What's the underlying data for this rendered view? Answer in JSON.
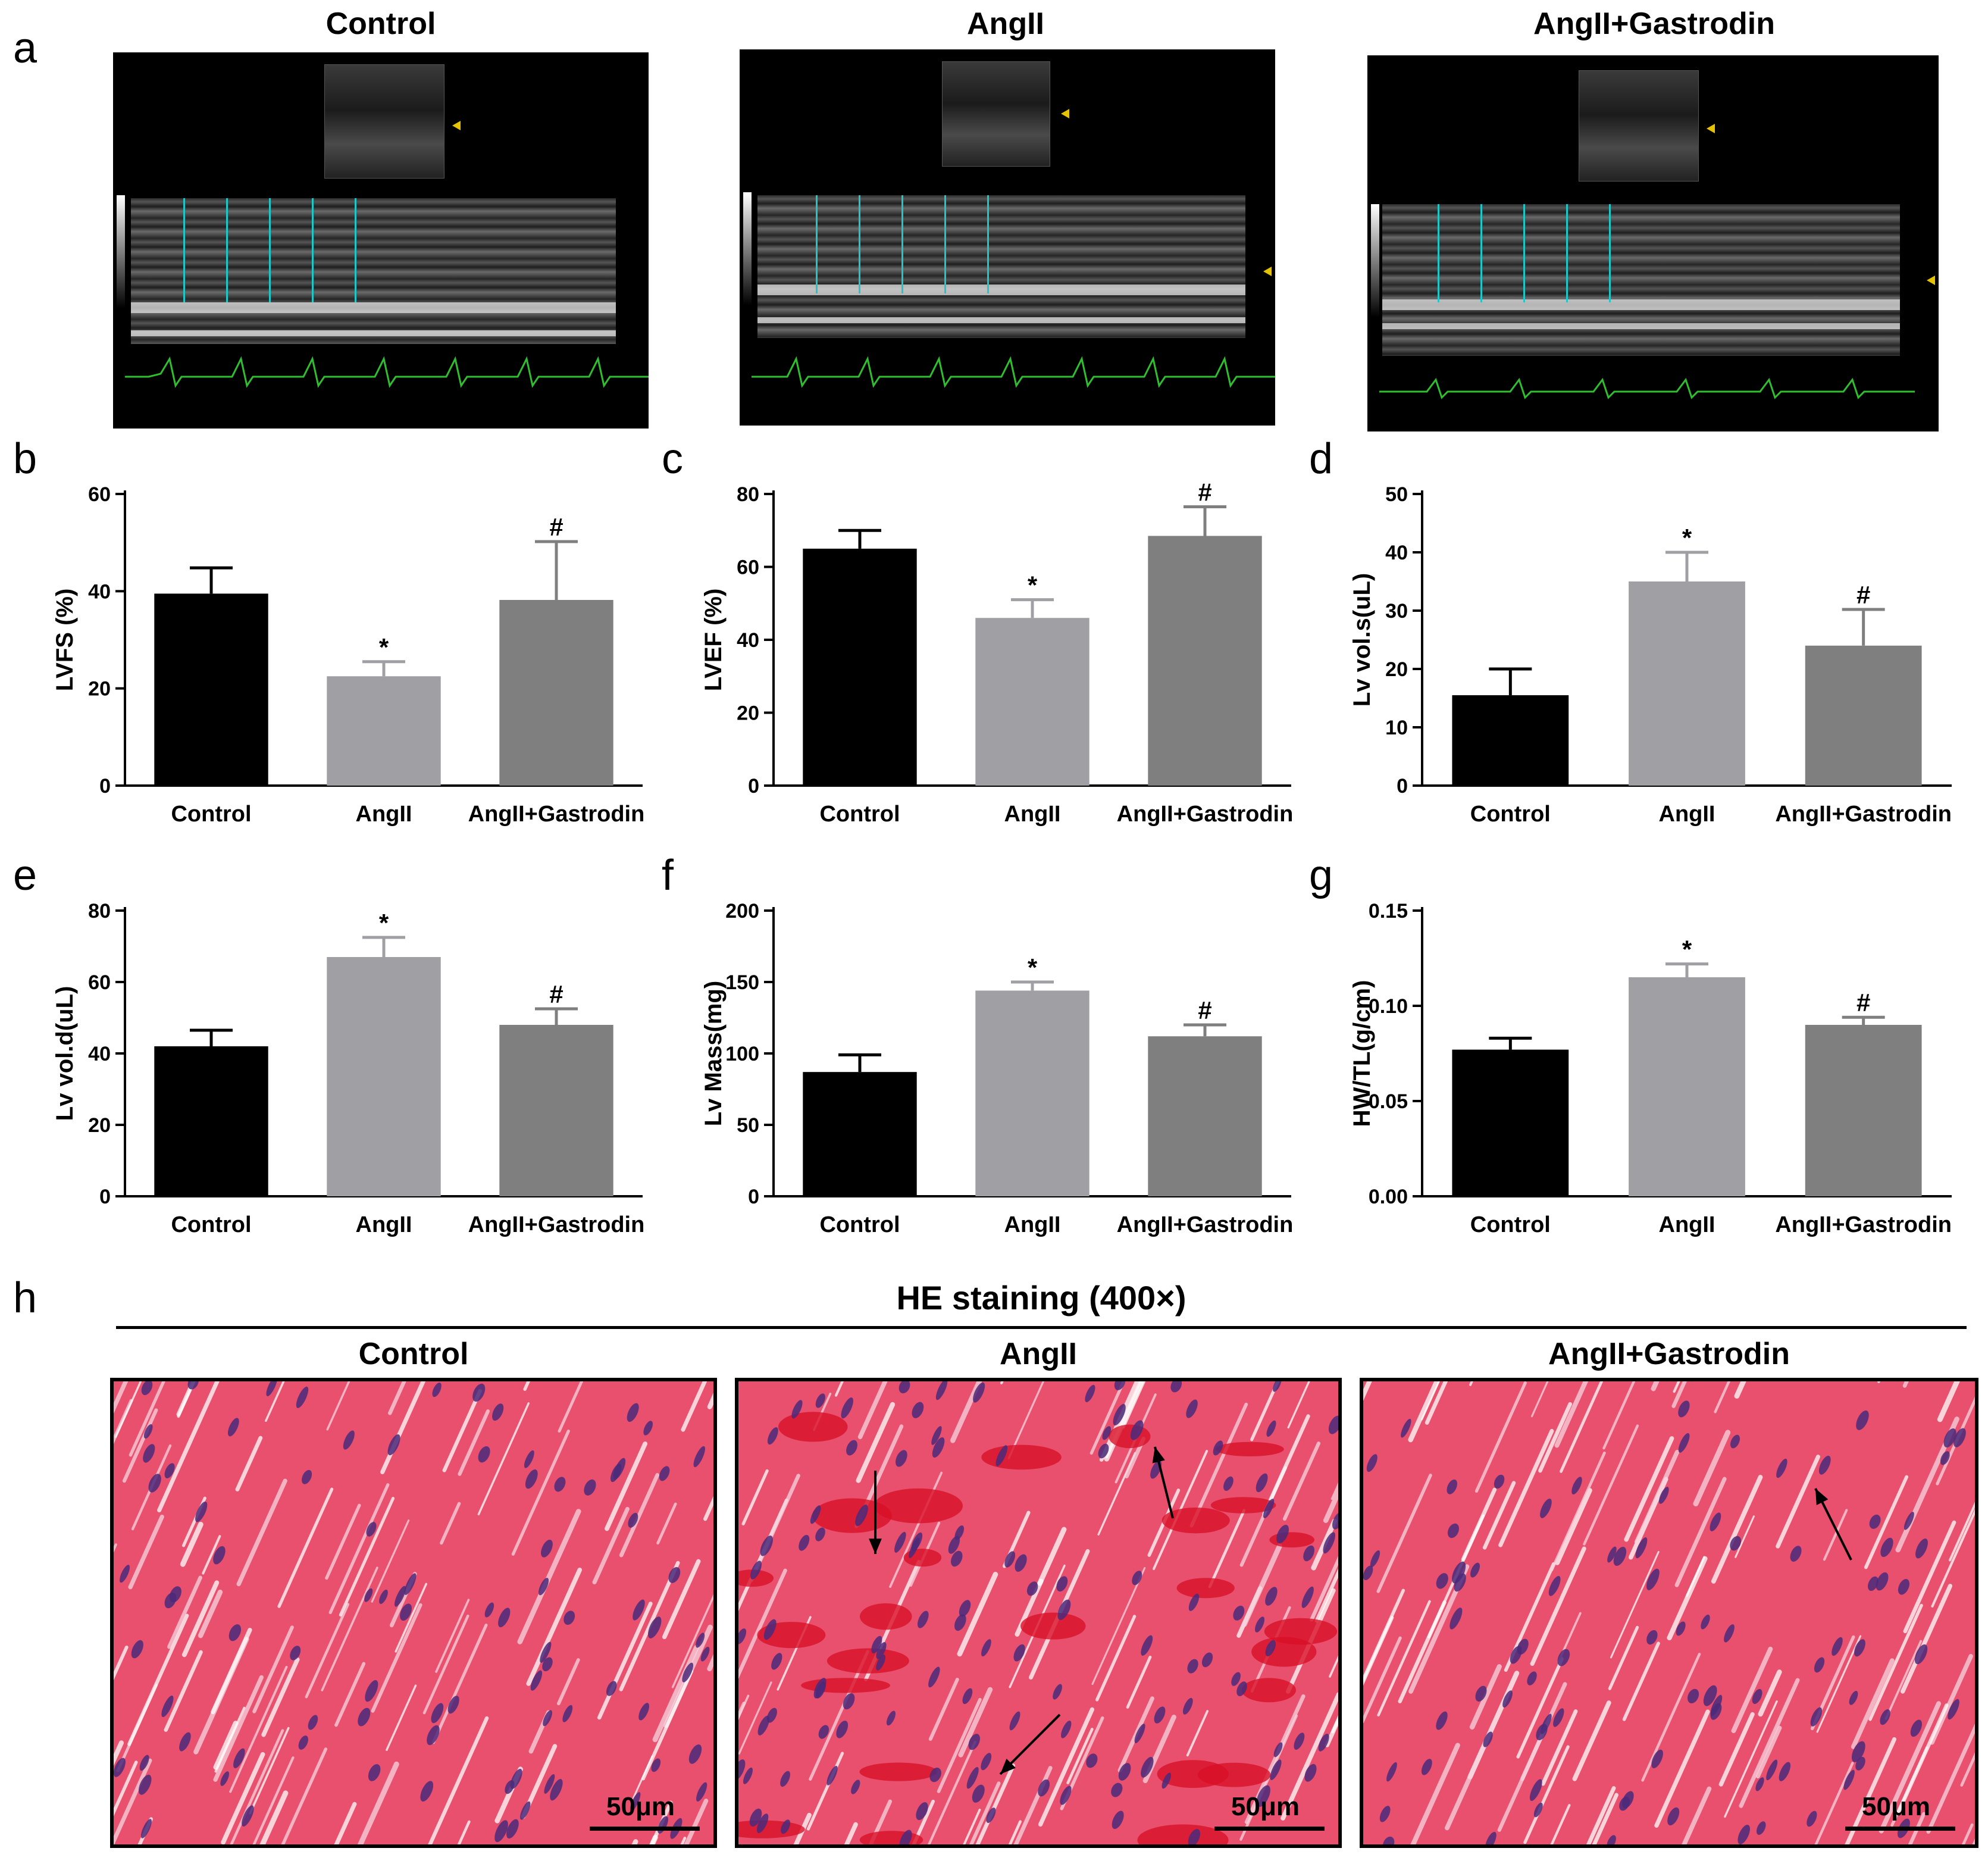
{
  "panel_labels": {
    "a": "a",
    "b": "b",
    "c": "c",
    "d": "d",
    "e": "e",
    "f": "f",
    "g": "g",
    "h": "h"
  },
  "echo": {
    "titles": [
      "Control",
      "AngII",
      "AngII+Gastrodin"
    ]
  },
  "histology": {
    "heading": "HE staining (400×)",
    "titles": [
      "Control",
      "AngII",
      "AngII+Gastrodin"
    ],
    "scale_label": "50μm",
    "colors": {
      "tissue": "#e8506e",
      "nuclei": "#4a2a7a",
      "highlight": "#d81028"
    }
  },
  "colors": {
    "control": "#000000",
    "angii": "#a0a0a4",
    "gastrodin": "#7f7f7f"
  },
  "chart_data": [
    {
      "type": "bar",
      "panel": "b",
      "categories": [
        "Control",
        "AngII",
        "AngII+Gastrodin"
      ],
      "values": [
        39.5,
        22.5,
        38.2
      ],
      "errors": [
        5.3,
        3.0,
        12.0
      ],
      "sig": [
        "",
        "*",
        "#"
      ],
      "ylabel": "LVFS (%)",
      "ylim": [
        0,
        60
      ],
      "yticks": [
        "0",
        "20",
        "40",
        "60"
      ],
      "tickvals": [
        0,
        20,
        40,
        60
      ]
    },
    {
      "type": "bar",
      "panel": "c",
      "categories": [
        "Control",
        "AngII",
        "AngII+Gastrodin"
      ],
      "values": [
        65,
        46,
        68.5
      ],
      "errors": [
        5,
        5,
        8
      ],
      "sig": [
        "",
        "*",
        "#"
      ],
      "ylabel": "LVEF (%)",
      "ylim": [
        0,
        80
      ],
      "yticks": [
        "0",
        "20",
        "40",
        "60",
        "80"
      ],
      "tickvals": [
        0,
        20,
        40,
        60,
        80
      ]
    },
    {
      "type": "bar",
      "panel": "d",
      "categories": [
        "Control",
        "AngII",
        "AngII+Gastrodin"
      ],
      "values": [
        15.5,
        35,
        24
      ],
      "errors": [
        4.5,
        5,
        6.2
      ],
      "sig": [
        "",
        "*",
        "#"
      ],
      "ylabel": "Lv vol.s(uL)",
      "ylim": [
        0,
        50
      ],
      "yticks": [
        "0",
        "10",
        "20",
        "30",
        "40",
        "50"
      ],
      "tickvals": [
        0,
        10,
        20,
        30,
        40,
        50
      ]
    },
    {
      "type": "bar",
      "panel": "e",
      "categories": [
        "Control",
        "AngII",
        "AngII+Gastrodin"
      ],
      "values": [
        42,
        67,
        48
      ],
      "errors": [
        4.5,
        5.5,
        4.5
      ],
      "sig": [
        "",
        "*",
        "#"
      ],
      "ylabel": "Lv vol.d(uL)",
      "ylim": [
        0,
        80
      ],
      "yticks": [
        "0",
        "20",
        "40",
        "60",
        "80"
      ],
      "tickvals": [
        0,
        20,
        40,
        60,
        80
      ]
    },
    {
      "type": "bar",
      "panel": "f",
      "categories": [
        "Control",
        "AngII",
        "AngII+Gastrodin"
      ],
      "values": [
        87,
        144,
        112
      ],
      "errors": [
        12,
        6,
        8
      ],
      "sig": [
        "",
        "*",
        "#"
      ],
      "ylabel": "Lv Mass(mg)",
      "ylim": [
        0,
        200
      ],
      "yticks": [
        "0",
        "50",
        "100",
        "150",
        "200"
      ],
      "tickvals": [
        0,
        50,
        100,
        150,
        200
      ]
    },
    {
      "type": "bar",
      "panel": "g",
      "categories": [
        "Control",
        "AngII",
        "AngII+Gastrodin"
      ],
      "values": [
        0.077,
        0.115,
        0.09
      ],
      "errors": [
        0.006,
        0.007,
        0.004
      ],
      "sig": [
        "",
        "*",
        "#"
      ],
      "ylabel": "HW/TL(g/cm)",
      "ylim": [
        0,
        0.15
      ],
      "yticks": [
        "0.00",
        "0.05",
        "0.10",
        "0.15"
      ],
      "tickvals": [
        0,
        0.05,
        0.1,
        0.15
      ]
    }
  ]
}
